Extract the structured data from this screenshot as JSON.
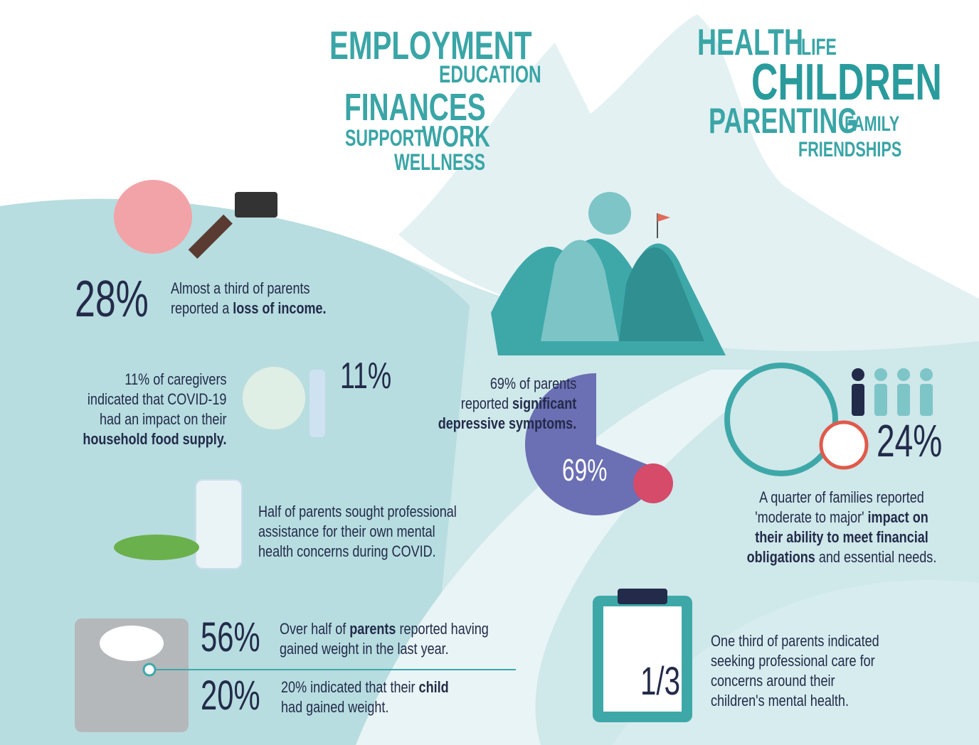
{
  "word_cloud": {
    "left": [
      "EMPLOYMENT",
      "EDUCATION",
      "FINANCES",
      "SUPPORT",
      "WORK",
      "WELLNESS"
    ],
    "right": [
      "HEALTH",
      "LIFE",
      "CHILDREN",
      "PARENTING",
      "FAMILY",
      "FRIENDSHIPS"
    ]
  },
  "stats": {
    "income": {
      "figure": "28%",
      "text": [
        "Almost a third of parents",
        "reported a ",
        "loss of income."
      ]
    },
    "food": {
      "figure": "11%",
      "text": [
        "11% of caregivers",
        "indicated that COVID-19",
        "had an impact on their",
        "household food supply."
      ]
    },
    "depression": {
      "value": 69,
      "label": "69%",
      "text": [
        "69% of parents",
        "reported ",
        "significant",
        "depressive symptoms."
      ]
    },
    "mental_help": {
      "text": [
        "Half of parents sought professional",
        "assistance for their own mental",
        "health concerns during COVID."
      ]
    },
    "financial": {
      "figure": "24%",
      "text": [
        "A quarter of families reported",
        "'moderate to major' ",
        "impact on",
        "their ability to meet financial",
        "obligations",
        " and essential needs."
      ]
    },
    "weight_parents": {
      "figure": "56%",
      "text": [
        "Over half of ",
        "parents",
        " reported having",
        "gained weight in the last year."
      ]
    },
    "weight_child": {
      "figure": "20%",
      "text": [
        "20% indicated that their ",
        "child",
        "had gained weight."
      ]
    },
    "child_care": {
      "figure": "1/3",
      "text": [
        "One third of parents indicated",
        "seeking professional care for",
        "concerns around their",
        "children's mental health."
      ]
    }
  }
}
